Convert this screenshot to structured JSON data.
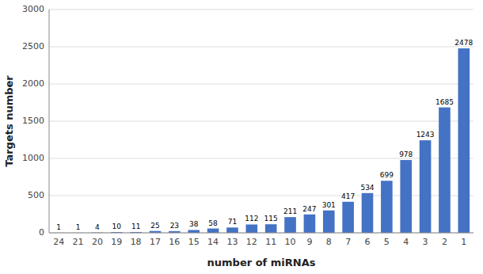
{
  "chart_data": {
    "type": "bar",
    "categories": [
      "24",
      "21",
      "20",
      "19",
      "18",
      "17",
      "16",
      "15",
      "14",
      "13",
      "12",
      "11",
      "10",
      "9",
      "8",
      "7",
      "6",
      "5",
      "4",
      "3",
      "2",
      "1"
    ],
    "values": [
      1,
      1,
      4,
      10,
      11,
      25,
      23,
      38,
      58,
      71,
      112,
      115,
      211,
      247,
      301,
      417,
      534,
      699,
      978,
      1243,
      1685,
      2478
    ],
    "color": "#4472C4",
    "xlabel": "number of miRNAs",
    "ylabel": "Targets number",
    "ylim": [
      0,
      3000
    ],
    "yticks": [
      0,
      500,
      1000,
      1500,
      2000,
      2500,
      3000
    ],
    "grid": true,
    "data_labels": true
  }
}
